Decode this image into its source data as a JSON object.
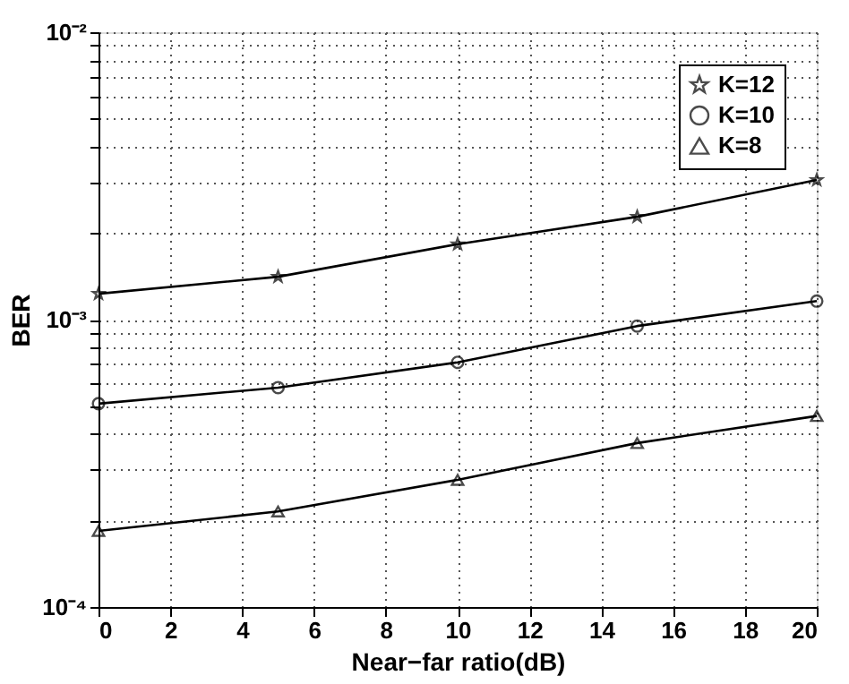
{
  "chart_data": {
    "type": "line",
    "xlabel": "Near−far ratio(dB)",
    "ylabel": "BER",
    "log": "y",
    "grid": true,
    "legend": "top right",
    "line_style": "solid",
    "x": [
      0,
      5,
      10,
      15,
      20
    ],
    "xlim": [
      0,
      20
    ],
    "xticks": [
      0,
      2,
      4,
      6,
      8,
      10,
      12,
      14,
      16,
      18,
      20
    ],
    "ylim": [
      0.0001,
      0.01
    ],
    "yticks": [
      {
        "value": 0.0001,
        "label": "10⁻⁴"
      },
      {
        "value": 0.0002,
        "label": null
      },
      {
        "value": 0.0003,
        "label": null
      },
      {
        "value": 0.0004,
        "label": null
      },
      {
        "value": 0.0005,
        "label": null
      },
      {
        "value": 0.0006,
        "label": null
      },
      {
        "value": 0.0007,
        "label": null
      },
      {
        "value": 0.0008,
        "label": null
      },
      {
        "value": 0.0009,
        "label": null
      },
      {
        "value": 0.001,
        "label": "10⁻³"
      },
      {
        "value": 0.002,
        "label": null
      },
      {
        "value": 0.003,
        "label": null
      },
      {
        "value": 0.004,
        "label": null
      },
      {
        "value": 0.005,
        "label": null
      },
      {
        "value": 0.006,
        "label": null
      },
      {
        "value": 0.007,
        "label": null
      },
      {
        "value": 0.008,
        "label": null
      },
      {
        "value": 0.009,
        "label": null
      },
      {
        "value": 0.01,
        "label": "10⁻²"
      }
    ],
    "series": [
      {
        "name": "K=12",
        "color": "#000000",
        "marker": "star",
        "values": [
          0.00123,
          0.00141,
          0.00183,
          0.00228,
          0.00306
        ]
      },
      {
        "name": "K=10",
        "color": "#000000",
        "marker": "circle",
        "values": [
          0.00051,
          0.00058,
          0.00071,
          0.00095,
          0.00116
        ]
      },
      {
        "name": "K=8",
        "color": "#000000",
        "marker": "triangle",
        "values": [
          0.000184,
          0.000215,
          0.000277,
          0.000372,
          0.000462
        ]
      }
    ]
  }
}
